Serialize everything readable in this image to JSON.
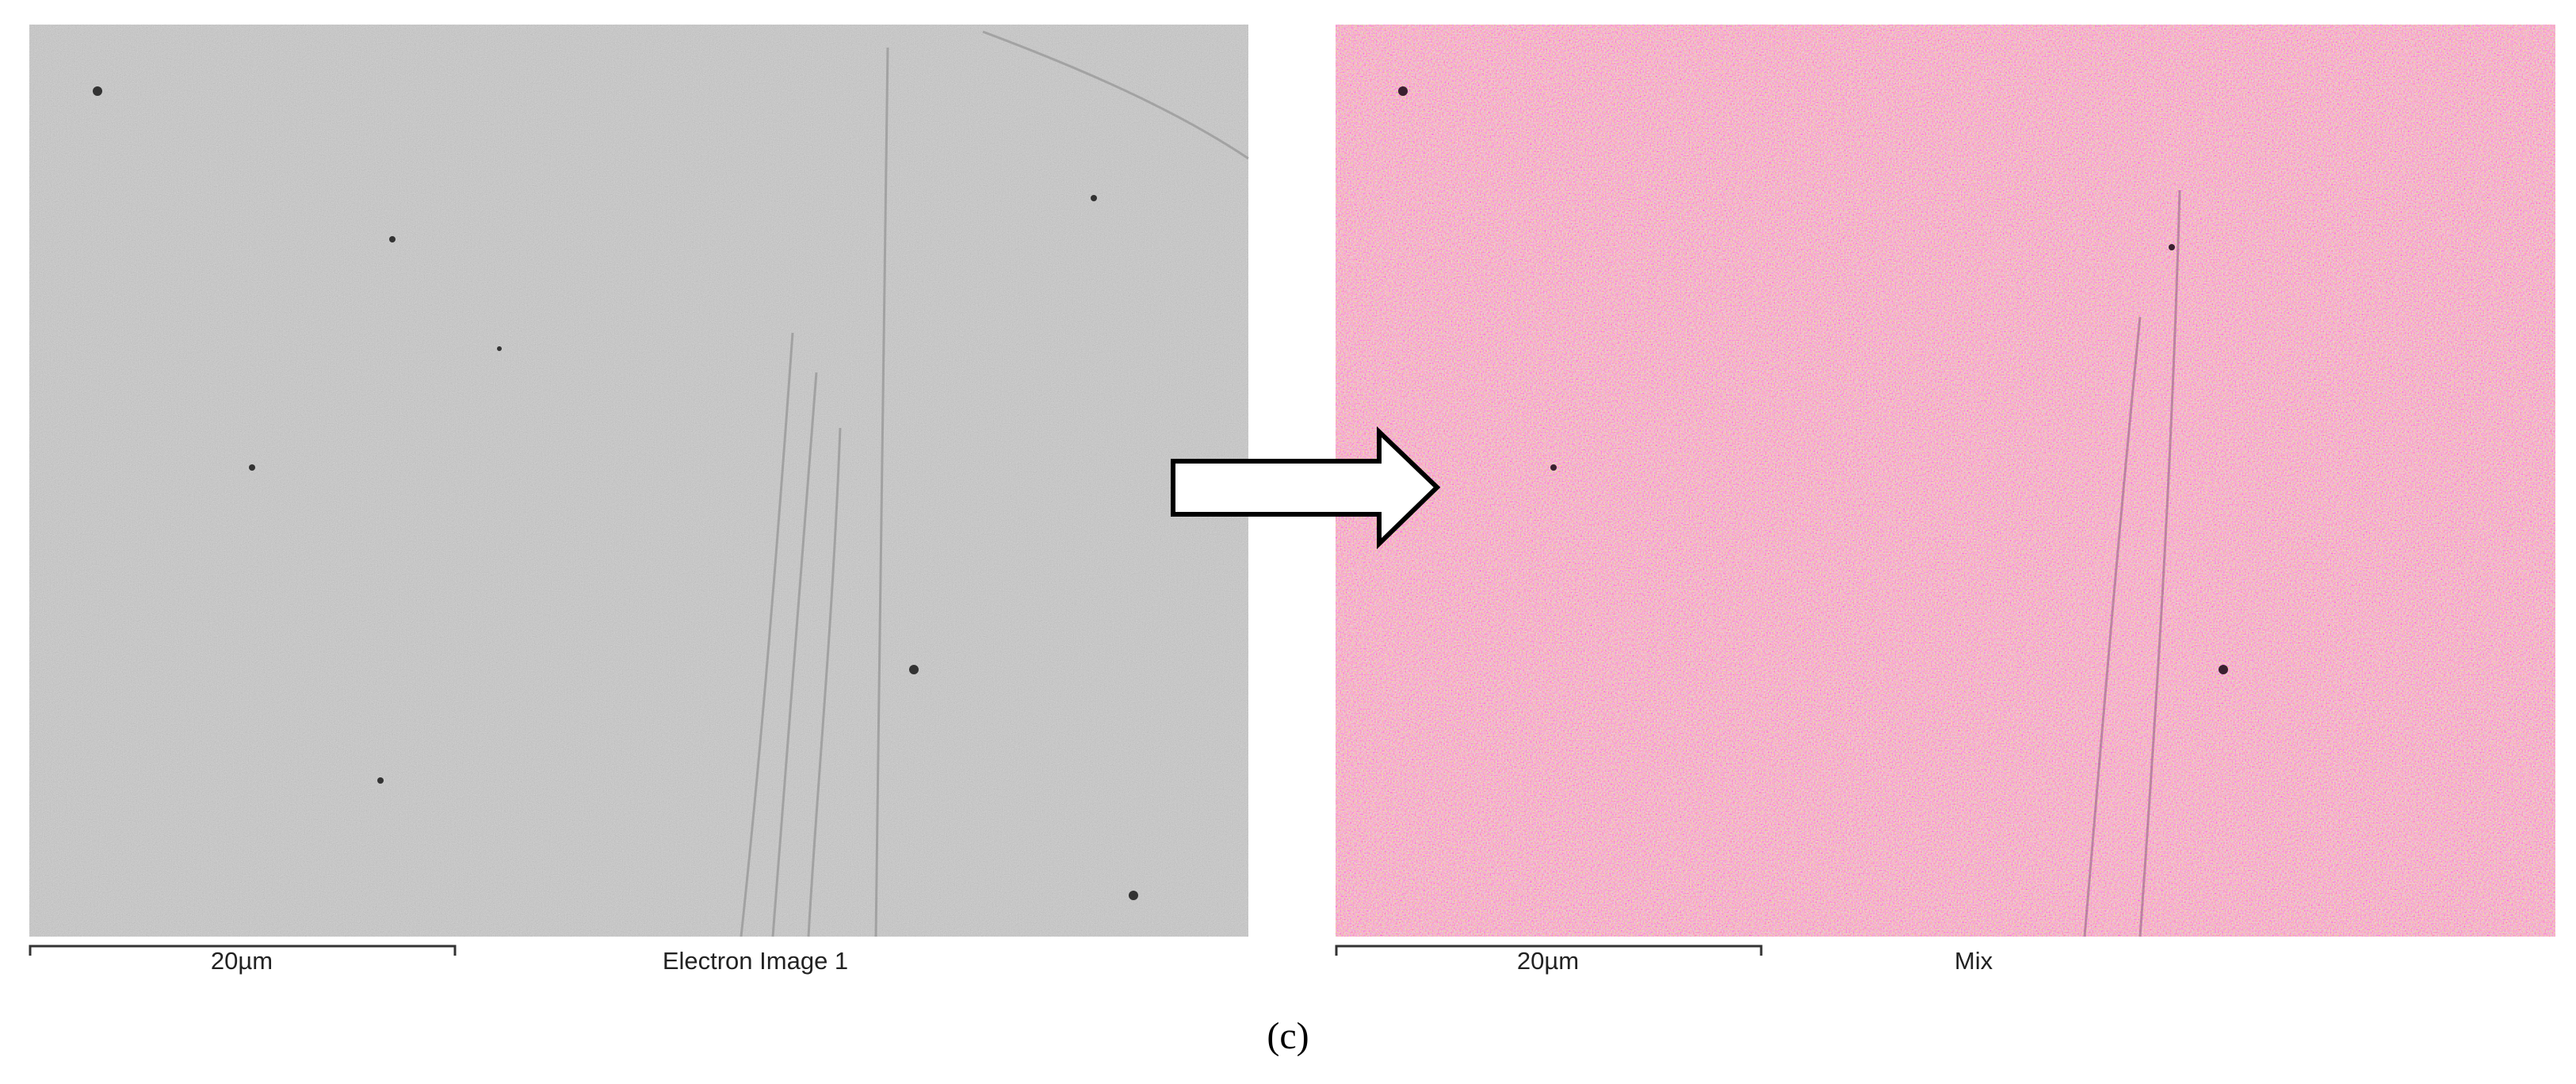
{
  "panels": [
    {
      "scale_bar_label": "20µm",
      "caption": "Electron Image 1"
    },
    {
      "scale_bar_label": "20µm",
      "caption": "Mix"
    }
  ],
  "figure_label": "(c)"
}
